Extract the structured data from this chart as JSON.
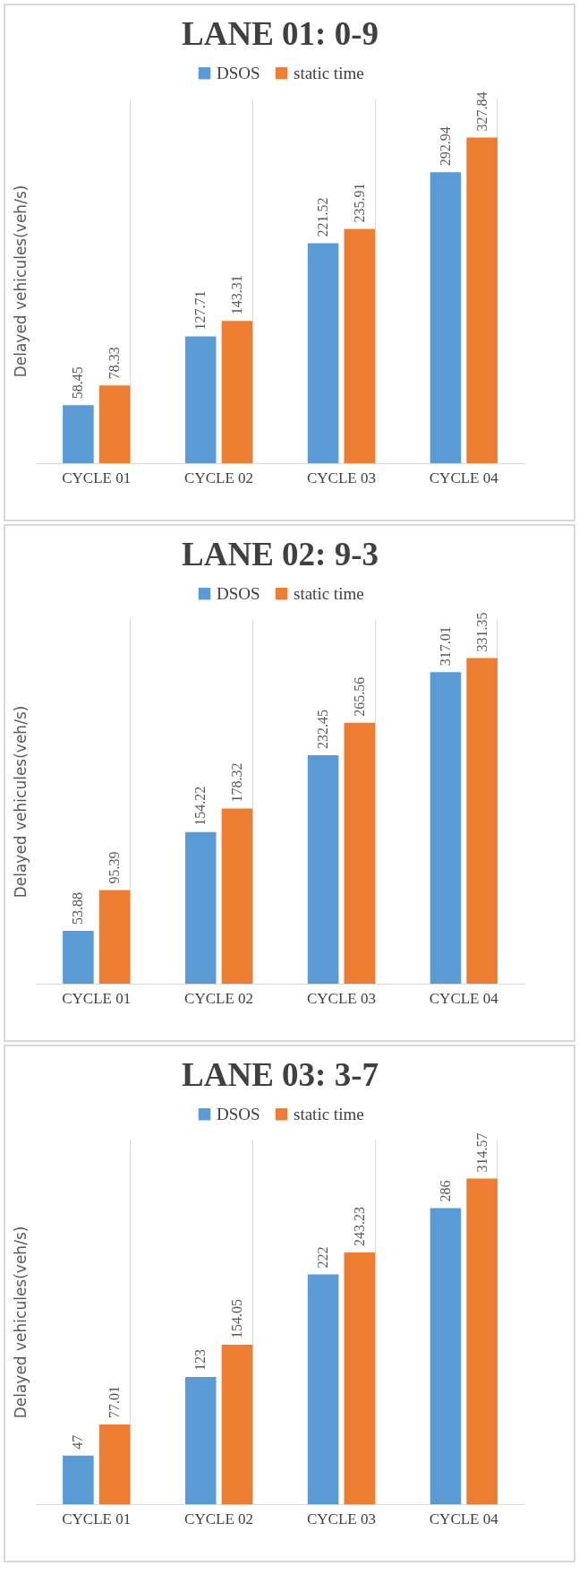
{
  "chart_data": [
    {
      "type": "bar",
      "title": "LANE 01: 0-9",
      "ylabel": "Delayed vehicules(veh/s)",
      "categories": [
        "CYCLE 01",
        "CYCLE 02",
        "CYCLE 03",
        "CYCLE 04"
      ],
      "legend": "top",
      "grid": "x",
      "data_labels": true,
      "series": [
        {
          "name": "DSOS",
          "color": "#5b9bd5",
          "values": [
            58.45,
            127.71,
            221.52,
            292.94
          ]
        },
        {
          "name": "static time",
          "color": "#ed7d31",
          "values": [
            78.33,
            143.31,
            235.91,
            327.84
          ]
        }
      ]
    },
    {
      "type": "bar",
      "title": "LANE 02: 9-3",
      "ylabel": "Delayed vehicules(veh/s)",
      "categories": [
        "CYCLE 01",
        "CYCLE 02",
        "CYCLE 03",
        "CYCLE 04"
      ],
      "legend": "top",
      "grid": "x",
      "data_labels": true,
      "series": [
        {
          "name": "DSOS",
          "color": "#5b9bd5",
          "values": [
            53.88,
            154.22,
            232.45,
            317.01
          ]
        },
        {
          "name": "static time",
          "color": "#ed7d31",
          "values": [
            95.39,
            178.32,
            265.56,
            331.35
          ]
        }
      ]
    },
    {
      "type": "bar",
      "title": "LANE 03: 3-7",
      "ylabel": "Delayed vehicules(veh/s)",
      "categories": [
        "CYCLE 01",
        "CYCLE 02",
        "CYCLE 03",
        "CYCLE 04"
      ],
      "legend": "top",
      "grid": "x",
      "data_labels": true,
      "series": [
        {
          "name": "DSOS",
          "color": "#5b9bd5",
          "values": [
            47,
            123,
            222,
            286
          ]
        },
        {
          "name": "static time",
          "color": "#ed7d31",
          "values": [
            77.01,
            154.05,
            243.23,
            314.57
          ]
        }
      ]
    }
  ]
}
